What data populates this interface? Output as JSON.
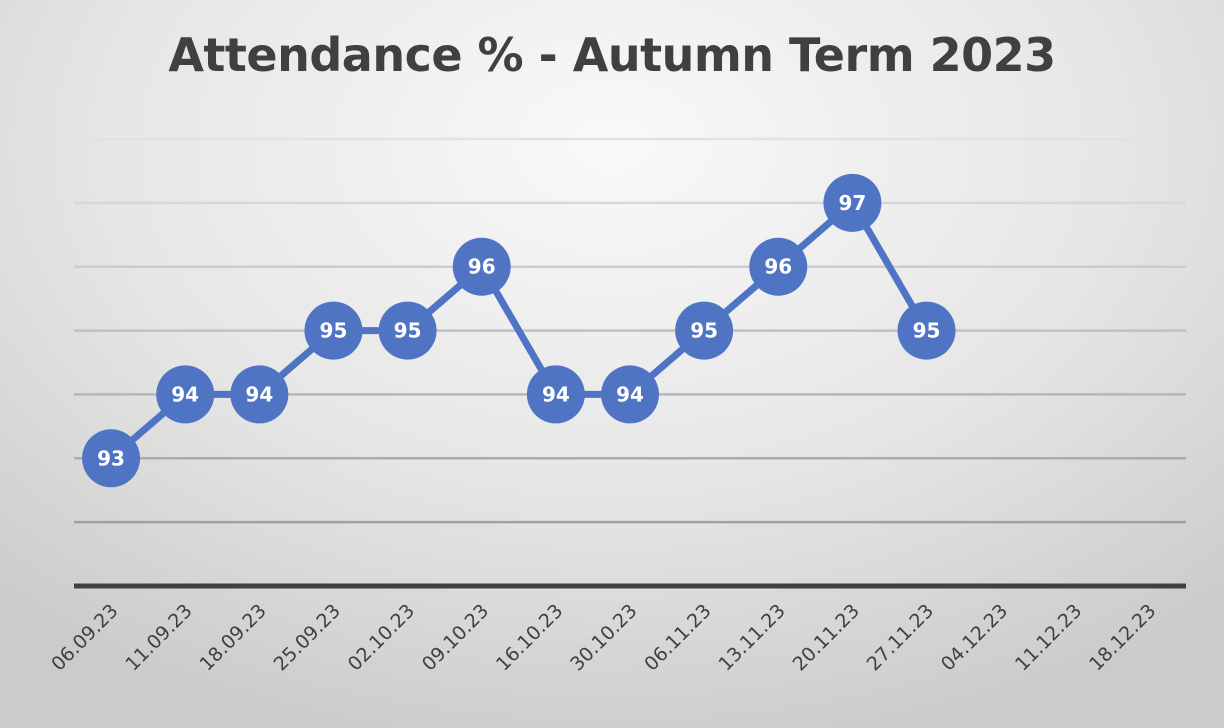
{
  "chart_data": {
    "type": "line",
    "title": "Attendance % - Autumn Term 2023",
    "xlabel": "",
    "ylabel": "",
    "categories": [
      "06.09.23",
      "11.09.23",
      "18.09.23",
      "25.09.23",
      "02.10.23",
      "09.10.23",
      "16.10.23",
      "30.10.23",
      "06.11.23",
      "13.11.23",
      "20.11.23",
      "27.11.23",
      "04.12.23",
      "11.12.23",
      "18.12.23"
    ],
    "series": [
      {
        "name": "Attendance %",
        "values": [
          93,
          94,
          94,
          95,
          95,
          96,
          94,
          94,
          95,
          96,
          97,
          95,
          null,
          null,
          null
        ]
      }
    ],
    "ylim": [
      91,
      98
    ],
    "y_gridlines": [
      92,
      93,
      94,
      95,
      96,
      97,
      98
    ],
    "grid": true,
    "y_axis_labels_shown": false,
    "data_labels": true,
    "legend": "none",
    "colors": {
      "line": "#4f74c3",
      "marker": "#4f74c3",
      "label": "#ffffff",
      "grid": "#c8c8c8",
      "axis": "#404040",
      "title": "#404040"
    }
  }
}
